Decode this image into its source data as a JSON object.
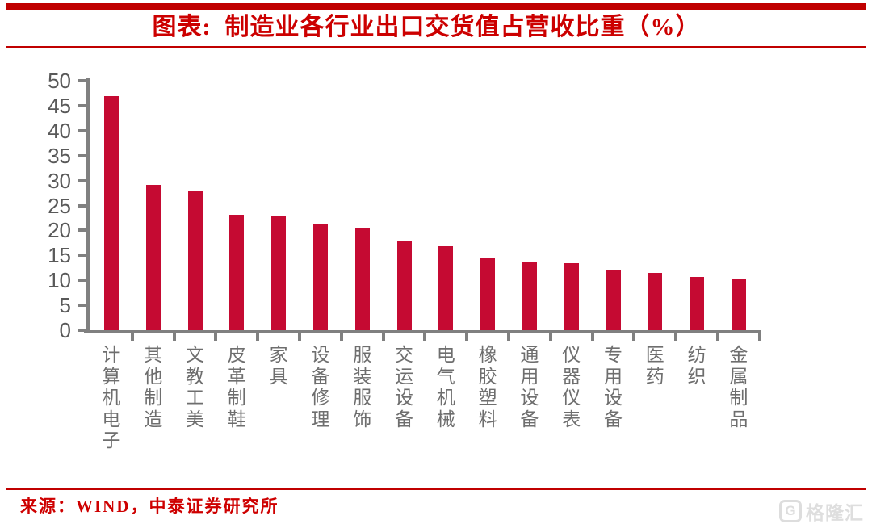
{
  "header": {
    "title": "图表:  制造业各行业出口交货值占营收比重（%）"
  },
  "chart_data": {
    "type": "bar",
    "title": "制造业各行业出口交货值占营收比重（%）",
    "categories": [
      "计算机电子",
      "其他制造",
      "文教工美",
      "皮革制鞋",
      "家具",
      "设备修理",
      "服装服饰",
      "交运设备",
      "电气机械",
      "橡胶塑料",
      "通用设备",
      "仪器仪表",
      "专用设备",
      "医药",
      "纺织",
      "金属制品"
    ],
    "values": [
      46.9,
      29.2,
      27.8,
      23.1,
      22.8,
      21.4,
      20.5,
      18.0,
      16.8,
      14.6,
      13.8,
      13.4,
      12.1,
      11.5,
      10.6,
      10.3
    ],
    "xlabel": "",
    "ylabel": "",
    "ylim": [
      0,
      50
    ],
    "ytick_step": 5,
    "ytick_labels": [
      "0",
      "5",
      "10",
      "15",
      "20",
      "25",
      "30",
      "35",
      "40",
      "45",
      "50"
    ],
    "grid": false,
    "legend_position": "none",
    "bar_color": "#C50A32",
    "axis_color": "#808080",
    "ytick_label_color": "#595959",
    "category_label_color": "#6E6E6E",
    "category_orientation": "vertical"
  },
  "footer": {
    "source": "来源：WIND，中泰证券研究所",
    "logo_icon": "gelonghui-g-icon",
    "logo_g": "G",
    "logo_text": "格隆汇"
  },
  "colors": {
    "accent_bar_red": "#C00000",
    "title_red": "#CC0000",
    "source_red": "#CE0000",
    "bar_red": "#C50A32",
    "axis_gray": "#808080",
    "logo_gray": "#DEDEDE"
  }
}
